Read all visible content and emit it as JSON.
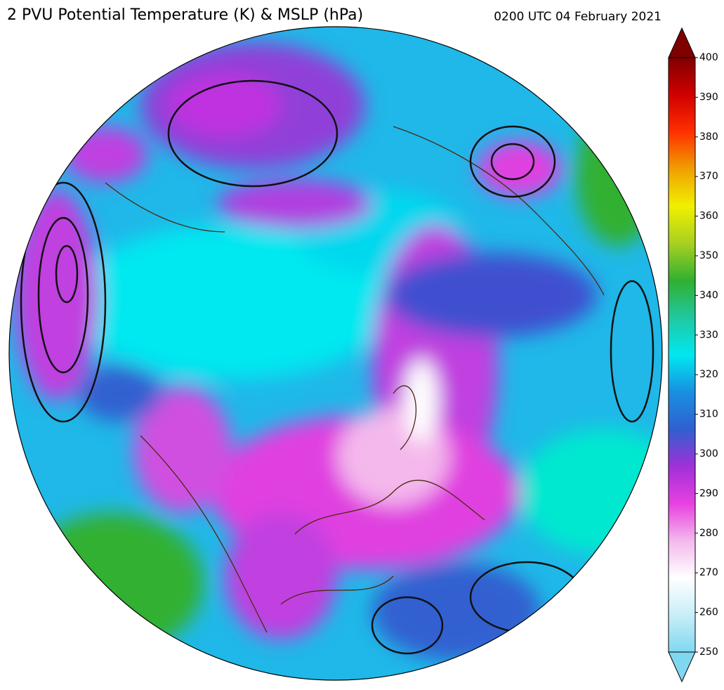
{
  "title": "2 PVU Potential Temperature (K) & MSLP (hPa)",
  "valid_time": "0200 UTC 04 February 2021",
  "colorbar": {
    "lim": [
      250,
      400
    ],
    "ticks": [
      250,
      260,
      270,
      280,
      290,
      300,
      310,
      320,
      330,
      340,
      350,
      360,
      370,
      380,
      390,
      400
    ],
    "colors": [
      "#80d8f0",
      "#c8eef8",
      "#ffffff",
      "#f4b8ec",
      "#e840e0",
      "#a030d8",
      "#3060d0",
      "#1890e0",
      "#00e8f0",
      "#20c8a0",
      "#30b030",
      "#a8d020",
      "#f0f000",
      "#f0a000",
      "#ff3000",
      "#d00000",
      "#800000"
    ]
  }
}
